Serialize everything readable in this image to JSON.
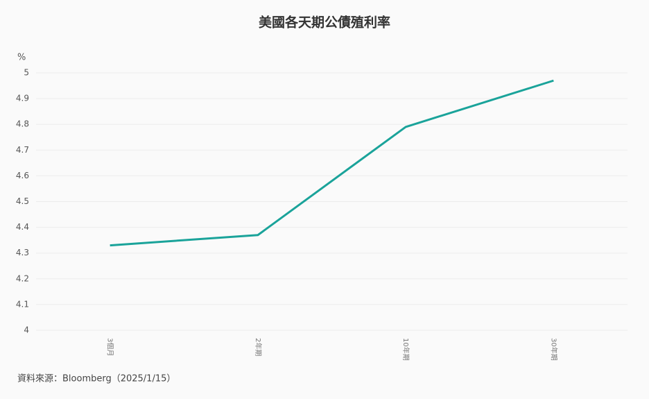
{
  "chart_data": {
    "type": "line",
    "title": "美國各天期公債殖利率",
    "y_label": "%",
    "categories": [
      "3個月",
      "2年期",
      "10年期",
      "30年期"
    ],
    "series": [
      {
        "name": "殖利率",
        "color": "#1aa39a",
        "values": [
          4.33,
          4.37,
          4.79,
          4.97
        ]
      }
    ],
    "ylim": [
      4,
      5
    ],
    "yticks": [
      4,
      4.1,
      4.2,
      4.3,
      4.4,
      4.5,
      4.6,
      4.7,
      4.8,
      4.9,
      5
    ],
    "grid": true,
    "source": "資料來源：Bloomberg（2025/1/15）"
  }
}
